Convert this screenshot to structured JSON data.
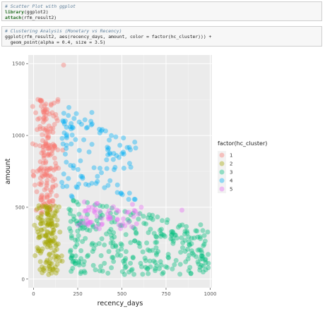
{
  "code_cells": [
    {
      "lines": [
        [
          {
            "cls": "cm",
            "text": "# Scatter Plot with ggplot"
          }
        ],
        [
          {
            "cls": "kw",
            "text": "library"
          },
          {
            "cls": "tx",
            "text": "(ggplot2)"
          }
        ],
        [
          {
            "cls": "kw",
            "text": "attach"
          },
          {
            "cls": "tx",
            "text": "(rfm_result2)"
          }
        ]
      ]
    },
    {
      "lines": [
        [
          {
            "cls": "cm",
            "text": "# Clustering Analysis (Monetary vs Recency)"
          }
        ],
        [
          {
            "cls": "tx",
            "text": "ggplot(rfm_result2, aes(recency_days, amount, color = factor(hc_cluster))) +"
          }
        ],
        [
          {
            "cls": "tx",
            "text": "  geom_point(alpha = 0.4, size = 3.5)"
          }
        ]
      ]
    }
  ],
  "chart_data": {
    "type": "scatter",
    "xlabel": "recency_days",
    "ylabel": "amount",
    "xlim": [
      -30,
      1010
    ],
    "ylim": [
      -60,
      1560
    ],
    "xticks": [
      0,
      250,
      500,
      750,
      1000
    ],
    "yticks": [
      0,
      500,
      1000,
      1500
    ],
    "grid": true,
    "alpha": 0.4,
    "legend": {
      "title": "factor(hc_cluster)",
      "position": "right"
    },
    "series": [
      {
        "name": "1",
        "color": "#F8766D",
        "x_center": 70,
        "x_spread": 55,
        "y_min": 450,
        "y_max": 1250,
        "count": 170,
        "extra_points": [
          [
            170,
            1490
          ],
          [
            25,
            1250
          ],
          [
            45,
            1235
          ],
          [
            90,
            1150
          ],
          [
            130,
            1120
          ]
        ]
      },
      {
        "name": "2",
        "color": "#A3A500",
        "x_center": 85,
        "x_spread": 60,
        "y_min": 30,
        "y_max": 520,
        "count": 150,
        "extra_points": []
      },
      {
        "name": "3",
        "color": "#00BF7D",
        "x_start": 200,
        "x_end": 990,
        "y_min": 30,
        "y_max": 560,
        "count": 300,
        "extra_points": [
          [
            990,
            110
          ],
          [
            960,
            50
          ],
          [
            930,
            120
          ],
          [
            870,
            320
          ],
          [
            880,
            260
          ],
          [
            900,
            180
          ]
        ]
      },
      {
        "name": "4",
        "color": "#00B0F6",
        "x_start": 160,
        "x_end": 580,
        "y_min": 550,
        "y_max": 1200,
        "count": 110,
        "extra_points": [
          [
            200,
            1195
          ],
          [
            330,
            1160
          ],
          [
            170,
            1095
          ],
          [
            420,
            900
          ],
          [
            470,
            860
          ]
        ]
      },
      {
        "name": "5",
        "color": "#E76BF3",
        "x_start": 250,
        "x_end": 600,
        "y_min": 350,
        "y_max": 550,
        "count": 55,
        "extra_points": [
          [
            840,
            480
          ],
          [
            560,
            520
          ],
          [
            610,
            500
          ]
        ]
      }
    ]
  }
}
